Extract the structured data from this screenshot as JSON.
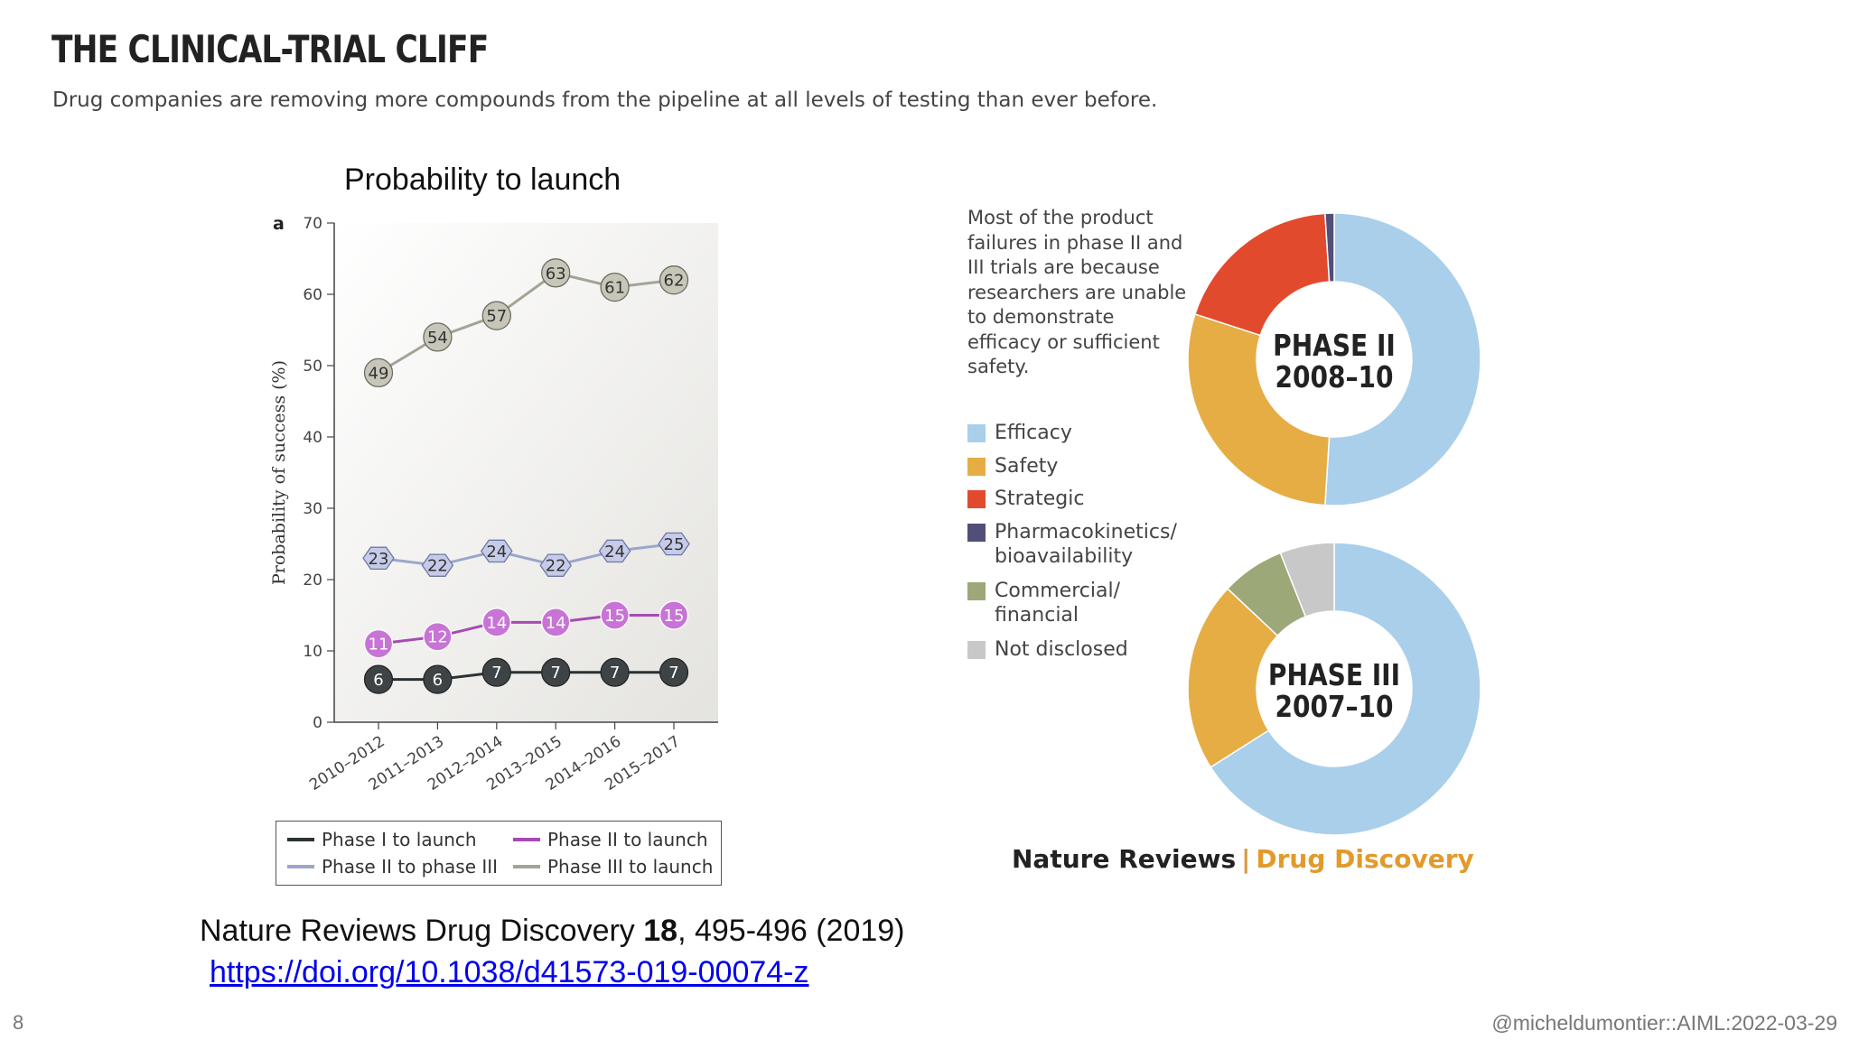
{
  "header": {
    "title": "THE CLINICAL-TRIAL CLIFF",
    "subtitle": "Drug companies are removing more compounds from the pipeline at all levels of testing than ever before."
  },
  "left_chart_title": "Probability to launch",
  "chart_data": [
    {
      "type": "line",
      "panel_label": "a",
      "ylabel": "Probability of success (%)",
      "ylim": [
        0,
        70
      ],
      "yticks": [
        0,
        10,
        20,
        30,
        40,
        50,
        60,
        70
      ],
      "categories": [
        "2010–2012",
        "2011–2013",
        "2012–2014",
        "2013–2015",
        "2014–2016",
        "2015–2017"
      ],
      "series": [
        {
          "name": "Phase III to launch",
          "values": [
            49,
            54,
            57,
            63,
            61,
            62
          ],
          "color": "#a3a397",
          "marker": "circle",
          "marker_fill": "#c7c6b8"
        },
        {
          "name": "Phase II to phase III",
          "values": [
            23,
            22,
            24,
            22,
            24,
            25
          ],
          "color": "#9ca6cc",
          "marker": "hexagon",
          "marker_fill": "#c5cbe8"
        },
        {
          "name": "Phase II to launch",
          "values": [
            11,
            12,
            14,
            14,
            15,
            15
          ],
          "color": "#a64ab5",
          "marker": "circle",
          "marker_fill": "#c873d6"
        },
        {
          "name": "Phase I to launch",
          "values": [
            6,
            6,
            7,
            7,
            7,
            7
          ],
          "color": "#2d3133",
          "marker": "circle",
          "marker_fill": "#3e4345"
        }
      ],
      "legend_placement": "bottom"
    },
    {
      "type": "pie",
      "center_label": [
        "PHASE II",
        "2008–10"
      ],
      "slices": [
        {
          "label": "Efficacy",
          "value": 51,
          "color": "#a9cfea"
        },
        {
          "label": "Safety",
          "value": 29,
          "color": "#e6ad45"
        },
        {
          "label": "Strategic",
          "value": 19,
          "color": "#e24a2d"
        },
        {
          "label": "Pharmacokinetics/ bioavailability",
          "value": 1,
          "color": "#504f7a"
        }
      ]
    },
    {
      "type": "pie",
      "center_label": [
        "PHASE III",
        "2007–10"
      ],
      "slices": [
        {
          "label": "Efficacy",
          "value": 66,
          "color": "#a9cfea"
        },
        {
          "label": "Safety",
          "value": 21,
          "color": "#e6ad45"
        },
        {
          "label": "Commercial/ financial",
          "value": 7,
          "color": "#9da878"
        },
        {
          "label": "Not disclosed",
          "value": 6,
          "color": "#c9c8c8"
        }
      ]
    }
  ],
  "right_note": "Most of the product failures in phase II and III trials are because researchers are unable to demonstrate efficacy or sufficient safety.",
  "pie_legend": [
    {
      "label": "Efficacy",
      "color": "#a9cfea"
    },
    {
      "label": "Safety",
      "color": "#e6ad45"
    },
    {
      "label": "Strategic",
      "color": "#e24a2d"
    },
    {
      "label": "Pharmacokinetics/",
      "label2": "bioavailability",
      "color": "#504f7a"
    },
    {
      "label": "Commercial/",
      "label2": "financial",
      "color": "#9da878"
    },
    {
      "label": "Not disclosed",
      "color": "#c9c8c8"
    }
  ],
  "brand": {
    "part1": "Nature Reviews",
    "separator": "|",
    "part2": "Drug Discovery"
  },
  "citation": {
    "journal": "Nature Reviews Drug Discovery",
    "volume": "18",
    "pages": ", 495-496 (2019)"
  },
  "doi": "https://doi.org/10.1038/d41573-019-00074-z",
  "footer": {
    "slide_number": "8",
    "handle": "@micheldumontier::AIML:2022-03-29"
  }
}
